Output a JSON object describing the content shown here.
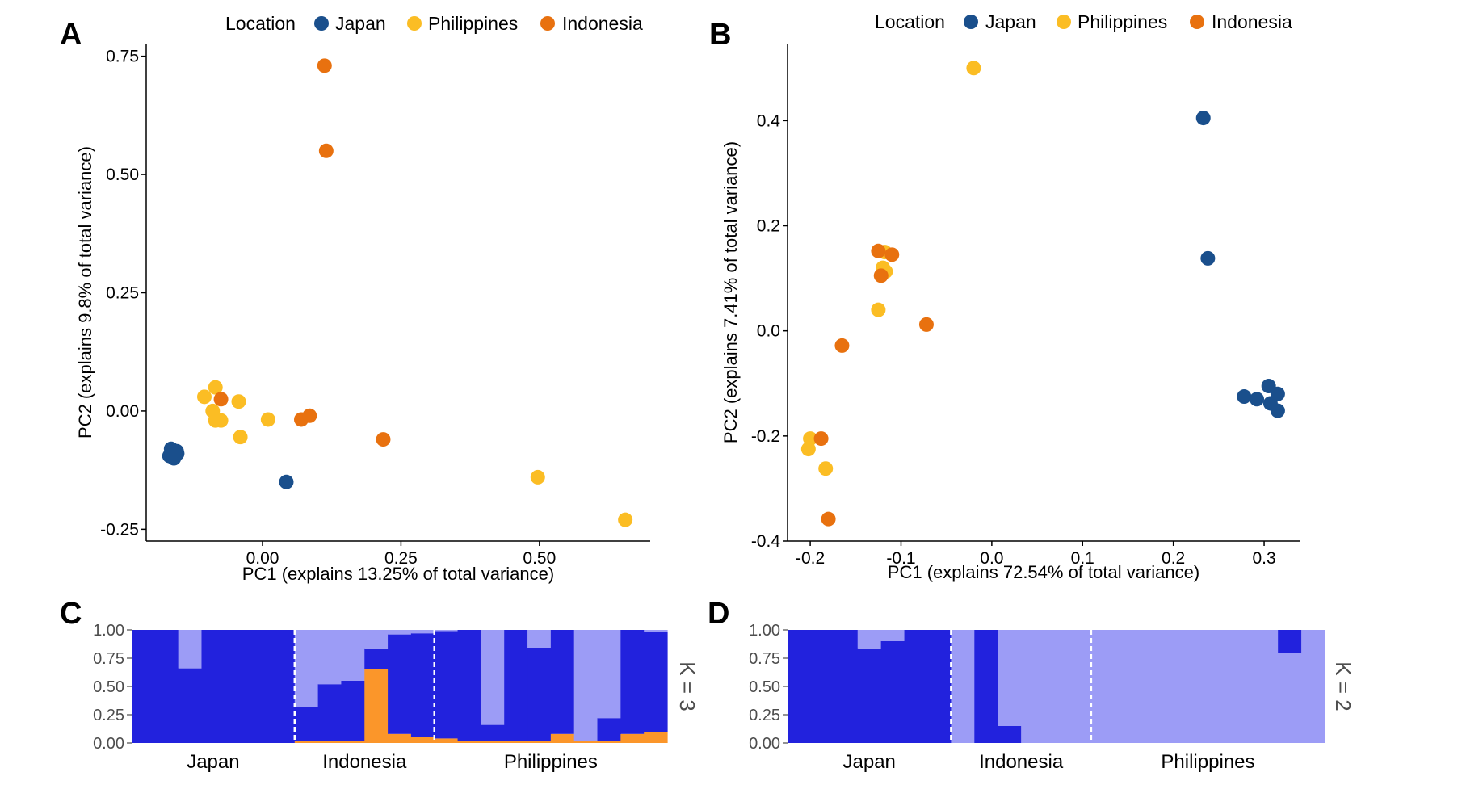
{
  "panels": [
    {
      "letter": "A"
    },
    {
      "letter": "B"
    },
    {
      "letter": "C"
    },
    {
      "letter": "D"
    }
  ],
  "colors": {
    "Japan": "#1a4f8c",
    "Philippines": "#fbbd24",
    "Indonesia": "#e8710f",
    "cluster_dark": "#2222dd",
    "cluster_light": "#9c9cf6",
    "cluster_orange": "#fb962a"
  },
  "chart_data": [
    {
      "type": "scatter",
      "panel": "A",
      "legend": {
        "title": "Location",
        "entries": [
          "Japan",
          "Philippines",
          "Indonesia"
        ],
        "placement": "top"
      },
      "xlabel": "PC1 (explains 13.25% of total variance)",
      "ylabel": "PC2 (explains 9.8% of total variance)",
      "xlim": [
        -0.21,
        0.7
      ],
      "ylim": [
        -0.275,
        0.775
      ],
      "xticks": [
        0.0,
        0.25,
        0.5
      ],
      "xtick_labels": [
        "0.00",
        "0.25",
        "0.50"
      ],
      "yticks": [
        -0.25,
        0.0,
        0.25,
        0.5,
        0.75
      ],
      "ytick_labels": [
        "-0.25",
        "0.00",
        "0.25",
        "0.50",
        "0.75"
      ],
      "grid": false,
      "series": [
        {
          "name": "Japan",
          "points": [
            [
              -0.165,
              -0.08
            ],
            [
              -0.155,
              -0.085
            ],
            [
              -0.168,
              -0.095
            ],
            [
              -0.16,
              -0.1
            ],
            [
              -0.154,
              -0.09
            ],
            [
              0.043,
              -0.15
            ]
          ]
        },
        {
          "name": "Philippines",
          "points": [
            [
              -0.105,
              0.03
            ],
            [
              -0.085,
              0.05
            ],
            [
              -0.09,
              0.0
            ],
            [
              -0.085,
              -0.02
            ],
            [
              -0.075,
              -0.02
            ],
            [
              -0.043,
              0.02
            ],
            [
              -0.04,
              -0.055
            ],
            [
              0.01,
              -0.018
            ],
            [
              0.497,
              -0.14
            ],
            [
              0.655,
              -0.23
            ]
          ]
        },
        {
          "name": "Indonesia",
          "points": [
            [
              -0.075,
              0.025
            ],
            [
              0.07,
              -0.018
            ],
            [
              0.085,
              -0.01
            ],
            [
              0.218,
              -0.06
            ],
            [
              0.112,
              0.73
            ],
            [
              0.115,
              0.55
            ]
          ]
        }
      ]
    },
    {
      "type": "scatter",
      "panel": "B",
      "legend": {
        "title": "Location",
        "entries": [
          "Japan",
          "Philippines",
          "Indonesia"
        ],
        "placement": "top"
      },
      "xlabel": "PC1 (explains 72.54% of total variance)",
      "ylabel": "PC2 (explains 7.41% of total variance)",
      "xlim": [
        -0.225,
        0.34
      ],
      "ylim": [
        -0.4,
        0.545
      ],
      "xticks": [
        -0.2,
        -0.1,
        0.0,
        0.1,
        0.2,
        0.3
      ],
      "xtick_labels": [
        "-0.2",
        "-0.1",
        "0.0",
        "0.1",
        "0.2",
        "0.3"
      ],
      "yticks": [
        -0.4,
        -0.2,
        0.0,
        0.2,
        0.4
      ],
      "ytick_labels": [
        "-0.4",
        "-0.2",
        "0.0",
        "0.2",
        "0.4"
      ],
      "grid": false,
      "series": [
        {
          "name": "Japan",
          "points": [
            [
              0.233,
              0.405
            ],
            [
              0.238,
              0.138
            ],
            [
              0.278,
              -0.125
            ],
            [
              0.292,
              -0.13
            ],
            [
              0.305,
              -0.105
            ],
            [
              0.307,
              -0.138
            ],
            [
              0.315,
              -0.12
            ],
            [
              0.315,
              -0.152
            ]
          ]
        },
        {
          "name": "Philippines",
          "points": [
            [
              -0.02,
              0.5
            ],
            [
              -0.118,
              0.15
            ],
            [
              -0.12,
              0.12
            ],
            [
              -0.117,
              0.113
            ],
            [
              -0.125,
              0.04
            ],
            [
              -0.2,
              -0.205
            ],
            [
              -0.202,
              -0.225
            ],
            [
              -0.183,
              -0.262
            ]
          ]
        },
        {
          "name": "Indonesia",
          "points": [
            [
              -0.125,
              0.152
            ],
            [
              -0.11,
              0.145
            ],
            [
              -0.122,
              0.105
            ],
            [
              -0.072,
              0.012
            ],
            [
              -0.165,
              -0.028
            ],
            [
              -0.188,
              -0.205
            ],
            [
              -0.18,
              -0.358
            ]
          ]
        }
      ]
    },
    {
      "type": "bar",
      "subtype": "stacked-structure",
      "panel": "C",
      "k_label": "K = 3",
      "ylim": [
        0,
        1
      ],
      "yticks": [
        0,
        0.25,
        0.5,
        0.75,
        1.0
      ],
      "ytick_labels": [
        "0.00",
        "0.25",
        "0.50",
        "0.75",
        "1.00"
      ],
      "groups": [
        {
          "label": "Japan",
          "start": 0,
          "count": 7
        },
        {
          "label": "Indonesia",
          "start": 7,
          "count": 6
        },
        {
          "label": "Philippines",
          "start": 13,
          "count": 10
        }
      ],
      "series": [
        {
          "name": "cluster-orange",
          "color_key": "cluster_orange",
          "values": [
            0,
            0,
            0,
            0,
            0,
            0,
            0,
            0.02,
            0.02,
            0.02,
            0.65,
            0.08,
            0.05,
            0.04,
            0.02,
            0.02,
            0.02,
            0.02,
            0.08,
            0.02,
            0.02,
            0.08,
            0.1
          ]
        },
        {
          "name": "cluster-dark",
          "color_key": "cluster_dark",
          "values": [
            1,
            1,
            0.66,
            1,
            1,
            1,
            1,
            0.3,
            0.5,
            0.53,
            0.18,
            0.88,
            0.92,
            0.95,
            0.98,
            0.14,
            0.98,
            0.82,
            0.92,
            0.0,
            0.2,
            0.92,
            0.88
          ]
        },
        {
          "name": "cluster-light",
          "color_key": "cluster_light",
          "values": [
            0,
            0,
            0.34,
            0,
            0,
            0,
            0,
            0.68,
            0.48,
            0.45,
            0.17,
            0.04,
            0.03,
            0.01,
            0.0,
            0.84,
            0.0,
            0.16,
            0.0,
            0.98,
            0.78,
            0.0,
            0.02
          ]
        }
      ]
    },
    {
      "type": "bar",
      "subtype": "stacked-structure",
      "panel": "D",
      "k_label": "K = 2",
      "ylim": [
        0,
        1
      ],
      "yticks": [
        0,
        0.25,
        0.5,
        0.75,
        1.0
      ],
      "ytick_labels": [
        "0.00",
        "0.25",
        "0.50",
        "0.75",
        "1.00"
      ],
      "groups": [
        {
          "label": "Japan",
          "start": 0,
          "count": 7
        },
        {
          "label": "Indonesia",
          "start": 7,
          "count": 6
        },
        {
          "label": "Philippines",
          "start": 13,
          "count": 10
        }
      ],
      "series": [
        {
          "name": "cluster-dark",
          "color_key": "cluster_dark",
          "values": [
            1,
            1,
            1,
            0.83,
            0.9,
            1,
            1,
            0,
            1,
            0.15,
            0,
            0,
            0,
            0,
            0,
            0,
            0,
            0,
            0,
            0,
            0,
            0,
            0
          ]
        },
        {
          "name": "cluster-light",
          "color_key": "cluster_light",
          "values": [
            0,
            0,
            0,
            0.17,
            0.1,
            0,
            0,
            1,
            0,
            0.85,
            1,
            1,
            1,
            1,
            1,
            1,
            1,
            1,
            1,
            1,
            1,
            0.8,
            1
          ]
        },
        {
          "name": "cluster-dark-top",
          "color_key": "cluster_dark",
          "values": [
            0,
            0,
            0,
            0,
            0,
            0,
            0,
            0,
            0,
            0,
            0,
            0,
            0,
            0,
            0,
            0,
            0,
            0,
            0,
            0,
            0,
            0.2,
            0
          ]
        }
      ]
    }
  ]
}
